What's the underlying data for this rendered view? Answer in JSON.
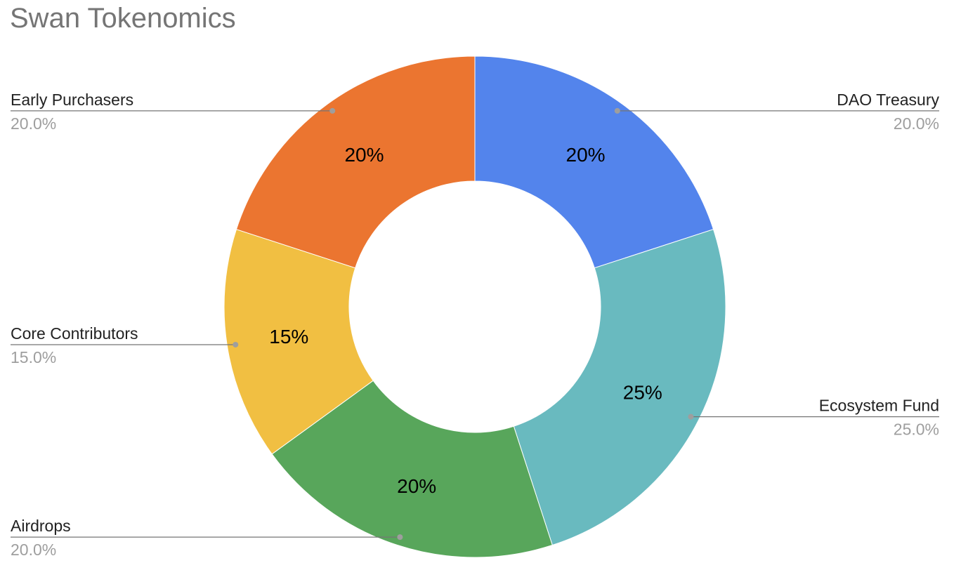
{
  "chart_data": {
    "type": "pie",
    "title": "Swan Tokenomics",
    "donut": true,
    "start_angle_deg": 0,
    "direction": "clockwise",
    "slices": [
      {
        "name": "DAO Treasury",
        "value": 20,
        "slice_label": "20%",
        "legend_pct": "20.0%",
        "color": "#5384ec",
        "side": "right"
      },
      {
        "name": "Ecosystem Fund",
        "value": 25,
        "slice_label": "25%",
        "legend_pct": "25.0%",
        "color": "#69babf",
        "side": "right"
      },
      {
        "name": "Airdrops",
        "value": 20,
        "slice_label": "20%",
        "legend_pct": "20.0%",
        "color": "#58a65b",
        "side": "left"
      },
      {
        "name": "Core Contributors",
        "value": 15,
        "slice_label": "15%",
        "legend_pct": "15.0%",
        "color": "#f1bf42",
        "side": "left"
      },
      {
        "name": "Early Purchasers",
        "value": 20,
        "slice_label": "20%",
        "legend_pct": "20.0%",
        "color": "#eb7530",
        "side": "left"
      }
    ]
  }
}
